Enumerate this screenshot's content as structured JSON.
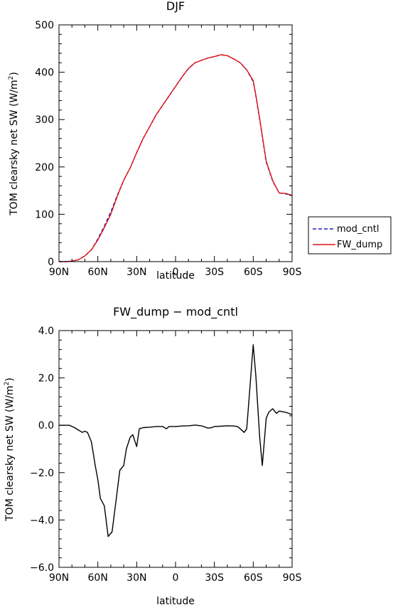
{
  "chart_data": [
    {
      "type": "line",
      "title": "DJF",
      "xlabel": "latitude",
      "ylabel": "TOM clearsky net SW (W/m²)",
      "ylabel_main": "TOM clearsky net SW (W/m",
      "ylabel_sup": "2",
      "ylabel_end": ")",
      "xlim": [
        -90,
        90
      ],
      "ylim": [
        0,
        500
      ],
      "xticks": [
        -90,
        -60,
        -30,
        0,
        30,
        60,
        90
      ],
      "xtick_labels": [
        "90N",
        "60N",
        "30N",
        "0",
        "30S",
        "60S",
        "90S"
      ],
      "yticks": [
        0,
        100,
        200,
        300,
        400,
        500
      ],
      "ytick_labels": [
        "0",
        "100",
        "200",
        "300",
        "400",
        "500"
      ],
      "grid": false,
      "legend_position": "right",
      "series": [
        {
          "name": "mod_cntl",
          "color": "#1f1fcc",
          "style": "dashed",
          "x": [
            -90,
            -85,
            -80,
            -75,
            -70,
            -65,
            -60,
            -55,
            -50,
            -45,
            -40,
            -35,
            -30,
            -25,
            -20,
            -15,
            -10,
            -5,
            0,
            5,
            10,
            15,
            20,
            25,
            30,
            35,
            40,
            45,
            50,
            55,
            60,
            62,
            65,
            70,
            75,
            80,
            85,
            90
          ],
          "y": [
            0,
            0,
            1,
            4,
            12,
            25,
            48,
            75,
            105,
            140,
            172,
            198,
            230,
            260,
            285,
            310,
            330,
            350,
            370,
            390,
            408,
            420,
            425,
            430,
            433,
            437,
            435,
            428,
            420,
            405,
            380,
            350,
            300,
            210,
            170,
            145,
            143,
            140
          ]
        },
        {
          "name": "FW_dump",
          "color": "#e01010",
          "style": "solid",
          "x": [
            -90,
            -85,
            -80,
            -75,
            -70,
            -65,
            -60,
            -55,
            -50,
            -45,
            -40,
            -35,
            -30,
            -25,
            -20,
            -15,
            -10,
            -5,
            0,
            5,
            10,
            15,
            20,
            25,
            30,
            35,
            40,
            45,
            50,
            55,
            60,
            62,
            65,
            70,
            75,
            80,
            85,
            90
          ],
          "y": [
            0,
            0,
            1,
            4,
            12,
            25,
            46,
            72,
            100,
            138,
            172,
            198,
            230,
            260,
            285,
            310,
            330,
            350,
            370,
            390,
            408,
            420,
            425,
            430,
            433,
            437,
            435,
            428,
            420,
            405,
            382,
            352,
            302,
            212,
            171,
            145,
            144,
            140
          ]
        }
      ]
    },
    {
      "type": "line",
      "title": "FW_dump − mod_cntl",
      "xlabel": "latitude",
      "ylabel": "TOM clearsky net SW (W/m²)",
      "ylabel_main": "TOM clearsky net SW (W/m",
      "ylabel_sup": "2",
      "ylabel_end": ")",
      "xlim": [
        -90,
        90
      ],
      "ylim": [
        -6.0,
        4.0
      ],
      "xticks": [
        -90,
        -60,
        -30,
        0,
        30,
        60,
        90
      ],
      "xtick_labels": [
        "90N",
        "60N",
        "30N",
        "0",
        "30S",
        "60S",
        "90S"
      ],
      "yticks": [
        -6,
        -4,
        -2,
        0,
        2,
        4
      ],
      "ytick_labels": [
        "−6.0",
        "−4.0",
        "−2.0",
        "0.0",
        "2.0",
        "4.0"
      ],
      "grid": false,
      "series": [
        {
          "color": "#000000",
          "style": "solid",
          "x": [
            -90,
            -85,
            -82,
            -78,
            -75,
            -72,
            -70,
            -68,
            -65,
            -62,
            -60,
            -58,
            -55,
            -52,
            -49,
            -46,
            -43,
            -40,
            -38,
            -35,
            -33,
            -30,
            -28,
            -25,
            -20,
            -15,
            -10,
            -7,
            -5,
            0,
            5,
            10,
            15,
            20,
            25,
            28,
            30,
            35,
            40,
            45,
            48,
            50,
            53,
            55,
            58,
            60,
            62,
            65,
            67,
            70,
            72,
            75,
            78,
            80,
            85,
            90
          ],
          "y": [
            0,
            0,
            0,
            -0.1,
            -0.2,
            -0.3,
            -0.25,
            -0.3,
            -0.7,
            -1.7,
            -2.3,
            -3.1,
            -3.4,
            -4.7,
            -4.5,
            -3.2,
            -1.9,
            -1.7,
            -1.0,
            -0.5,
            -0.4,
            -0.9,
            -0.15,
            -0.1,
            -0.08,
            -0.05,
            -0.05,
            -0.15,
            -0.05,
            -0.05,
            -0.03,
            -0.02,
            0.01,
            -0.02,
            -0.12,
            -0.1,
            -0.05,
            -0.04,
            -0.02,
            -0.03,
            -0.06,
            -0.15,
            -0.3,
            -0.15,
            2.0,
            3.4,
            2.1,
            -0.5,
            -1.7,
            0.3,
            0.55,
            0.7,
            0.5,
            0.6,
            0.55,
            0.45
          ]
        }
      ]
    }
  ]
}
